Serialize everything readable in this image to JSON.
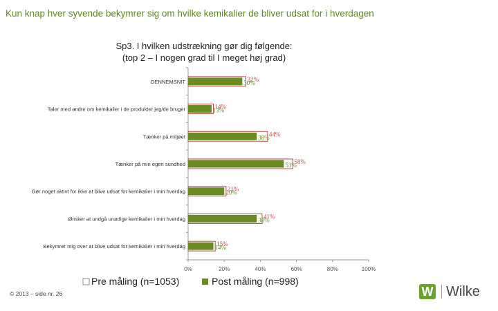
{
  "headline": "Kun knap hver syvende bekymrer sig om hvilke kemikalier de bliver udsat for i hverdagen",
  "footer": "© 2013 – side nr. 26",
  "logo": {
    "mark": "W",
    "name": "Wilke"
  },
  "colors": {
    "pre": "#ffffff",
    "pre_border": "#b94a48",
    "post": "#6a8a22",
    "headline": "#5f8a1f"
  },
  "chart_data": {
    "type": "bar",
    "orientation": "horizontal",
    "title_lines": [
      "Sp3. I hvilken udstrækning gør dig følgende:",
      "(top 2 – I nogen grad til I meget høj grad)"
    ],
    "categories": [
      "GENNEMSNIT",
      "Taler med andre om kemikalier i de produkter jeg/de bruger",
      "Tænker på miljøet",
      "Tænker på min egen sundhed",
      "Gør noget aktivt for ikke at blive udsat for kemikalier i min hverdag",
      "Ønsker at undgå unødige kemikalier i min hverdag",
      "Bekymrer mig over at blive udsat for kemikalier i min hverdag"
    ],
    "series": [
      {
        "name": "Pre måling (n=1053)",
        "values": [
          32,
          14,
          44,
          58,
          21,
          41,
          15
        ],
        "labels": [
          "32%",
          "14%",
          "44%",
          "58%",
          "21%",
          "41%",
          "15%"
        ]
      },
      {
        "name": "Post måling (n=998)",
        "values": [
          30,
          13,
          38,
          53,
          20,
          38,
          14
        ],
        "labels": [
          "30%",
          "13%",
          "38%",
          "53%",
          "20%",
          "38%",
          "14%"
        ]
      }
    ],
    "xlim": [
      0,
      100
    ],
    "x_ticks": [
      "0%",
      "20%",
      "40%",
      "60%",
      "80%",
      "100%"
    ],
    "legend_position": "bottom"
  }
}
